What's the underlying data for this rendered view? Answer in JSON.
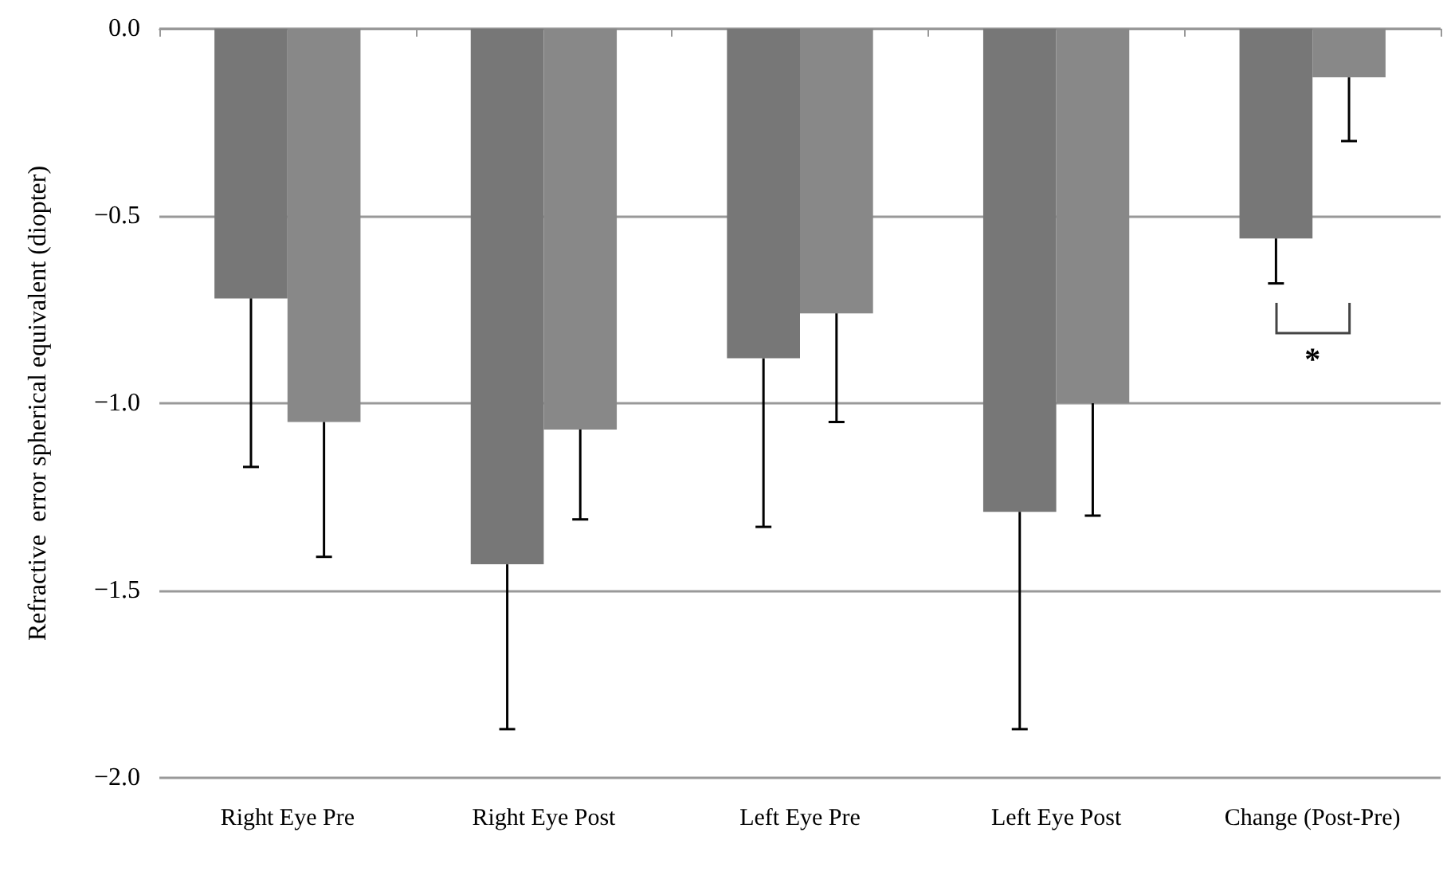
{
  "chart_data": {
    "type": "bar",
    "ylabel": "Refractive  error spherical equivalent (diopter)",
    "categories": [
      "Right Eye Pre",
      "Right Eye Post",
      "Left Eye Pre",
      "Left Eye Post",
      "Change (Post-Pre)"
    ],
    "series": [
      {
        "color": "#777777",
        "values": [
          -0.72,
          -1.43,
          -0.88,
          -1.29,
          -0.56
        ],
        "errors": [
          [
            -1.17,
            -0.72
          ],
          [
            -1.87,
            -1.43
          ],
          [
            -1.33,
            -0.88
          ],
          [
            -1.87,
            -1.29
          ],
          [
            -0.68,
            -0.56
          ]
        ]
      },
      {
        "color": "#888888",
        "values": [
          -1.05,
          -1.07,
          -0.76,
          -1.0,
          -0.13
        ],
        "errors": [
          [
            -1.41,
            -1.05
          ],
          [
            -1.31,
            -1.07
          ],
          [
            -1.05,
            -0.76
          ],
          [
            -1.3,
            -1.0
          ],
          [
            -0.3,
            -0.13
          ]
        ]
      }
    ],
    "ylim": [
      -2.0,
      0.0
    ],
    "yticks": [
      {
        "value": -2.0,
        "label": "−2.0"
      },
      {
        "value": -1.5,
        "label": "−1.5"
      },
      {
        "value": -1.0,
        "label": "−1.0"
      },
      {
        "value": -0.5,
        "label": "−0.5"
      },
      {
        "value": 0.0,
        "label": "0.0"
      }
    ],
    "grid": "y",
    "annotations": [
      "*"
    ]
  }
}
